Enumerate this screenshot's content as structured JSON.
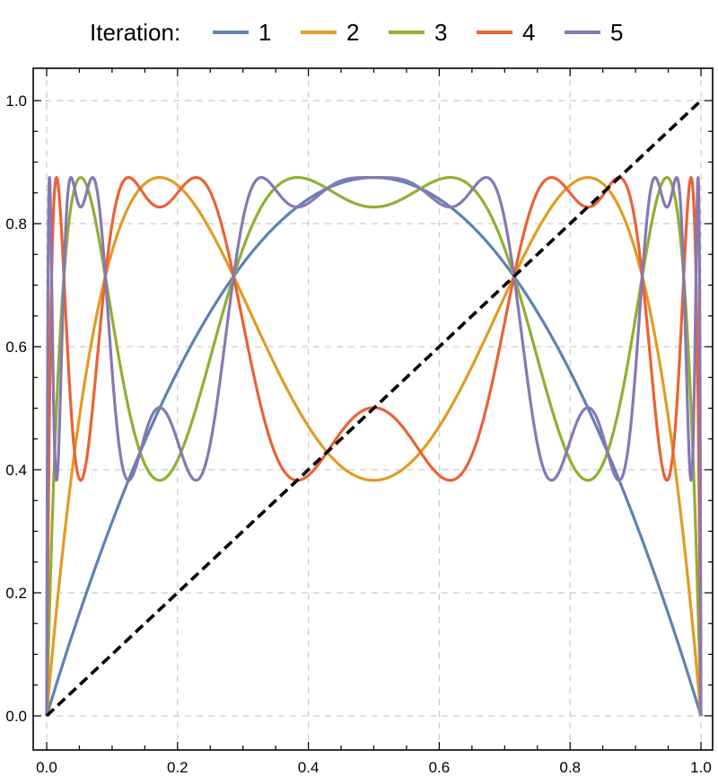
{
  "legend": {
    "title": "Iteration:"
  },
  "chart_data": {
    "type": "line",
    "title": "",
    "xlabel": "",
    "ylabel": "",
    "map": "x -> 3.5 * x * (1 - x)",
    "xlim": [
      0,
      1
    ],
    "ylim": [
      -0.05,
      1.05
    ],
    "grid": true,
    "legend_position": "top",
    "x_ticks": [
      "0.0",
      "0.2",
      "0.4",
      "0.6",
      "0.8",
      "1.0"
    ],
    "y_ticks": [
      "0.0",
      "0.2",
      "0.4",
      "0.6",
      "0.8",
      "1.0"
    ],
    "series": [
      {
        "name": "1",
        "iteration": 1,
        "color": "#5e81b5"
      },
      {
        "name": "2",
        "iteration": 2,
        "color": "#e19c24"
      },
      {
        "name": "3",
        "iteration": 3,
        "color": "#8fb032"
      },
      {
        "name": "4",
        "iteration": 4,
        "color": "#eb6235"
      },
      {
        "name": "5",
        "iteration": 5,
        "color": "#8778b3"
      }
    ],
    "reference_line": {
      "type": "dashed",
      "color": "#000000",
      "points": [
        [
          0,
          0
        ],
        [
          1,
          1
        ]
      ]
    }
  }
}
